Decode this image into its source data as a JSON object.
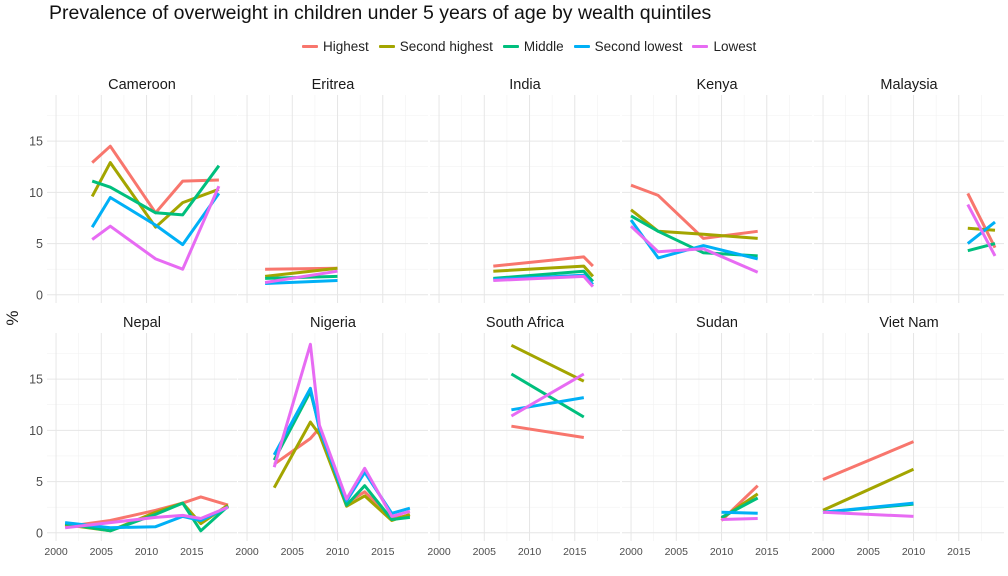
{
  "chart_data": {
    "type": "line",
    "title": "Prevalence of overweight in children under 5 years of age by wealth quintiles",
    "ylabel": "%",
    "xlabel": "",
    "xlim": [
      1999,
      2020
    ],
    "ylim": [
      -0.8,
      19.5
    ],
    "x_ticks": [
      2000,
      2005,
      2010,
      2015
    ],
    "y_ticks": [
      0,
      5,
      10,
      15
    ],
    "grid": true,
    "legend_position": "top",
    "series_names": [
      "Highest",
      "Second highest",
      "Middle",
      "Second lowest",
      "Lowest"
    ],
    "colors": {
      "Highest": "#F8766D",
      "Second highest": "#A3A500",
      "Middle": "#00BF7D",
      "Second lowest": "#00B0F6",
      "Lowest": "#E76BF3"
    },
    "panels": [
      {
        "name": "Cameroon",
        "series": [
          {
            "name": "Highest",
            "x": [
              2004,
              2006,
              2011,
              2014,
              2018
            ],
            "values": [
              12.9,
              14.5,
              8.0,
              11.1,
              11.2
            ]
          },
          {
            "name": "Second highest",
            "x": [
              2004,
              2006,
              2011,
              2014,
              2018
            ],
            "values": [
              9.6,
              12.9,
              6.6,
              9.0,
              10.3
            ]
          },
          {
            "name": "Middle",
            "x": [
              2004,
              2006,
              2011,
              2014,
              2018
            ],
            "values": [
              11.1,
              10.5,
              8.0,
              7.8,
              12.6
            ]
          },
          {
            "name": "Second lowest",
            "x": [
              2004,
              2006,
              2011,
              2014,
              2018
            ],
            "values": [
              6.6,
              9.5,
              6.8,
              4.9,
              9.9
            ]
          },
          {
            "name": "Lowest",
            "x": [
              2004,
              2006,
              2011,
              2014,
              2018
            ],
            "values": [
              5.4,
              6.7,
              3.5,
              2.5,
              10.6
            ]
          }
        ]
      },
      {
        "name": "Eritrea",
        "series": [
          {
            "name": "Highest",
            "x": [
              2002,
              2010
            ],
            "values": [
              2.5,
              2.6
            ]
          },
          {
            "name": "Second highest",
            "x": [
              2002,
              2010
            ],
            "values": [
              1.8,
              2.6
            ]
          },
          {
            "name": "Middle",
            "x": [
              2002,
              2010
            ],
            "values": [
              1.6,
              1.8
            ]
          },
          {
            "name": "Second lowest",
            "x": [
              2002,
              2010
            ],
            "values": [
              1.1,
              1.4
            ]
          },
          {
            "name": "Lowest",
            "x": [
              2002,
              2010
            ],
            "values": [
              1.2,
              2.3
            ]
          }
        ]
      },
      {
        "name": "India",
        "series": [
          {
            "name": "Highest",
            "x": [
              2006,
              2016,
              2017
            ],
            "values": [
              2.8,
              3.7,
              2.8
            ]
          },
          {
            "name": "Second highest",
            "x": [
              2006,
              2016,
              2017
            ],
            "values": [
              2.3,
              2.8,
              1.8
            ]
          },
          {
            "name": "Middle",
            "x": [
              2006,
              2016,
              2017
            ],
            "values": [
              1.6,
              2.3,
              1.3
            ]
          },
          {
            "name": "Second lowest",
            "x": [
              2006,
              2016,
              2017
            ],
            "values": [
              1.5,
              1.9,
              1.0
            ]
          },
          {
            "name": "Lowest",
            "x": [
              2006,
              2016,
              2017
            ],
            "values": [
              1.4,
              1.8,
              0.8
            ]
          }
        ]
      },
      {
        "name": "Kenya",
        "series": [
          {
            "name": "Highest",
            "x": [
              2000,
              2003,
              2008,
              2014
            ],
            "values": [
              10.7,
              9.7,
              5.5,
              6.2
            ]
          },
          {
            "name": "Second highest",
            "x": [
              2000,
              2003,
              2008,
              2014
            ],
            "values": [
              8.3,
              6.2,
              5.9,
              5.5
            ]
          },
          {
            "name": "Middle",
            "x": [
              2000,
              2003,
              2008,
              2014
            ],
            "values": [
              7.7,
              6.2,
              4.1,
              3.8
            ]
          },
          {
            "name": "Second lowest",
            "x": [
              2000,
              2003,
              2008,
              2014
            ],
            "values": [
              7.3,
              3.6,
              4.8,
              3.5
            ]
          },
          {
            "name": "Lowest",
            "x": [
              2000,
              2003,
              2008,
              2014
            ],
            "values": [
              6.7,
              4.2,
              4.5,
              2.2
            ]
          }
        ]
      },
      {
        "name": "Malaysia",
        "series": [
          {
            "name": "Highest",
            "x": [
              2016,
              2019
            ],
            "values": [
              9.9,
              4.6
            ]
          },
          {
            "name": "Second highest",
            "x": [
              2016,
              2019
            ],
            "values": [
              6.5,
              6.3
            ]
          },
          {
            "name": "Middle",
            "x": [
              2016,
              2019
            ],
            "values": [
              4.3,
              5.0
            ]
          },
          {
            "name": "Second lowest",
            "x": [
              2016,
              2019
            ],
            "values": [
              5.0,
              7.1
            ]
          },
          {
            "name": "Lowest",
            "x": [
              2016,
              2019
            ],
            "values": [
              8.8,
              3.8
            ]
          }
        ]
      },
      {
        "name": "Nepal",
        "series": [
          {
            "name": "Highest",
            "x": [
              2001,
              2006,
              2011,
              2014,
              2016,
              2019
            ],
            "values": [
              0.6,
              1.2,
              2.2,
              2.9,
              3.5,
              2.7
            ]
          },
          {
            "name": "Second highest",
            "x": [
              2001,
              2006,
              2011,
              2014,
              2016,
              2019
            ],
            "values": [
              0.8,
              0.2,
              2.0,
              2.9,
              0.9,
              2.7
            ]
          },
          {
            "name": "Middle",
            "x": [
              2001,
              2006,
              2011,
              2014,
              2016,
              2019
            ],
            "values": [
              0.9,
              0.2,
              1.8,
              2.9,
              0.2,
              2.6
            ]
          },
          {
            "name": "Second lowest",
            "x": [
              2001,
              2006,
              2011,
              2014,
              2016,
              2019
            ],
            "values": [
              1.0,
              0.5,
              0.6,
              1.6,
              1.2,
              2.5
            ]
          },
          {
            "name": "Lowest",
            "x": [
              2001,
              2006,
              2011,
              2014,
              2016,
              2019
            ],
            "values": [
              0.5,
              1.0,
              1.5,
              1.7,
              1.4,
              2.5
            ]
          }
        ]
      },
      {
        "name": "Nigeria",
        "series": [
          {
            "name": "Highest",
            "x": [
              2003,
              2007,
              2008,
              2011,
              2013,
              2016,
              2018
            ],
            "values": [
              6.7,
              9.2,
              10.2,
              2.9,
              4.0,
              1.4,
              1.7
            ]
          },
          {
            "name": "Second highest",
            "x": [
              2003,
              2007,
              2008,
              2011,
              2013,
              2016,
              2018
            ],
            "values": [
              4.4,
              10.8,
              9.6,
              2.6,
              3.6,
              1.2,
              1.8
            ]
          },
          {
            "name": "Middle",
            "x": [
              2003,
              2007,
              2008,
              2011,
              2013,
              2016,
              2018
            ],
            "values": [
              7.1,
              13.8,
              10.3,
              2.7,
              4.6,
              1.3,
              1.5
            ]
          },
          {
            "name": "Second lowest",
            "x": [
              2003,
              2007,
              2008,
              2011,
              2013,
              2016,
              2018
            ],
            "values": [
              7.6,
              14.1,
              10.1,
              3.1,
              5.9,
              1.9,
              2.4
            ]
          },
          {
            "name": "Lowest",
            "x": [
              2003,
              2007,
              2008,
              2011,
              2013,
              2016,
              2018
            ],
            "values": [
              6.4,
              18.4,
              10.5,
              3.3,
              6.3,
              1.6,
              2.1
            ]
          }
        ]
      },
      {
        "name": "South Africa",
        "series": [
          {
            "name": "Highest",
            "x": [
              2008,
              2016
            ],
            "values": [
              10.4,
              9.3
            ]
          },
          {
            "name": "Second highest",
            "x": [
              2008,
              2016
            ],
            "values": [
              18.3,
              14.8
            ]
          },
          {
            "name": "Middle",
            "x": [
              2008,
              2016
            ],
            "values": [
              15.5,
              11.3
            ]
          },
          {
            "name": "Second lowest",
            "x": [
              2008,
              2016
            ],
            "values": [
              12.0,
              13.2
            ]
          },
          {
            "name": "Lowest",
            "x": [
              2008,
              2016
            ],
            "values": [
              11.4,
              15.5
            ]
          }
        ]
      },
      {
        "name": "Sudan",
        "series": [
          {
            "name": "Highest",
            "x": [
              2010,
              2014
            ],
            "values": [
              1.2,
              4.6
            ]
          },
          {
            "name": "Second highest",
            "x": [
              2010,
              2014
            ],
            "values": [
              1.4,
              3.8
            ]
          },
          {
            "name": "Middle",
            "x": [
              2010,
              2014
            ],
            "values": [
              1.5,
              3.4
            ]
          },
          {
            "name": "Second lowest",
            "x": [
              2010,
              2014
            ],
            "values": [
              2.0,
              1.9
            ]
          },
          {
            "name": "Lowest",
            "x": [
              2010,
              2014
            ],
            "values": [
              1.3,
              1.4
            ]
          }
        ]
      },
      {
        "name": "Viet Nam",
        "series": [
          {
            "name": "Highest",
            "x": [
              2000,
              2010
            ],
            "values": [
              5.2,
              8.9
            ]
          },
          {
            "name": "Second highest",
            "x": [
              2000,
              2010
            ],
            "values": [
              2.2,
              6.2
            ]
          },
          {
            "name": "Middle",
            "x": [
              2000,
              2010
            ],
            "values": [
              2.0,
              2.8
            ]
          },
          {
            "name": "Second lowest",
            "x": [
              2000,
              2010
            ],
            "values": [
              2.0,
              2.9
            ]
          },
          {
            "name": "Lowest",
            "x": [
              2000,
              2010
            ],
            "values": [
              2.0,
              1.6
            ]
          }
        ]
      }
    ]
  }
}
